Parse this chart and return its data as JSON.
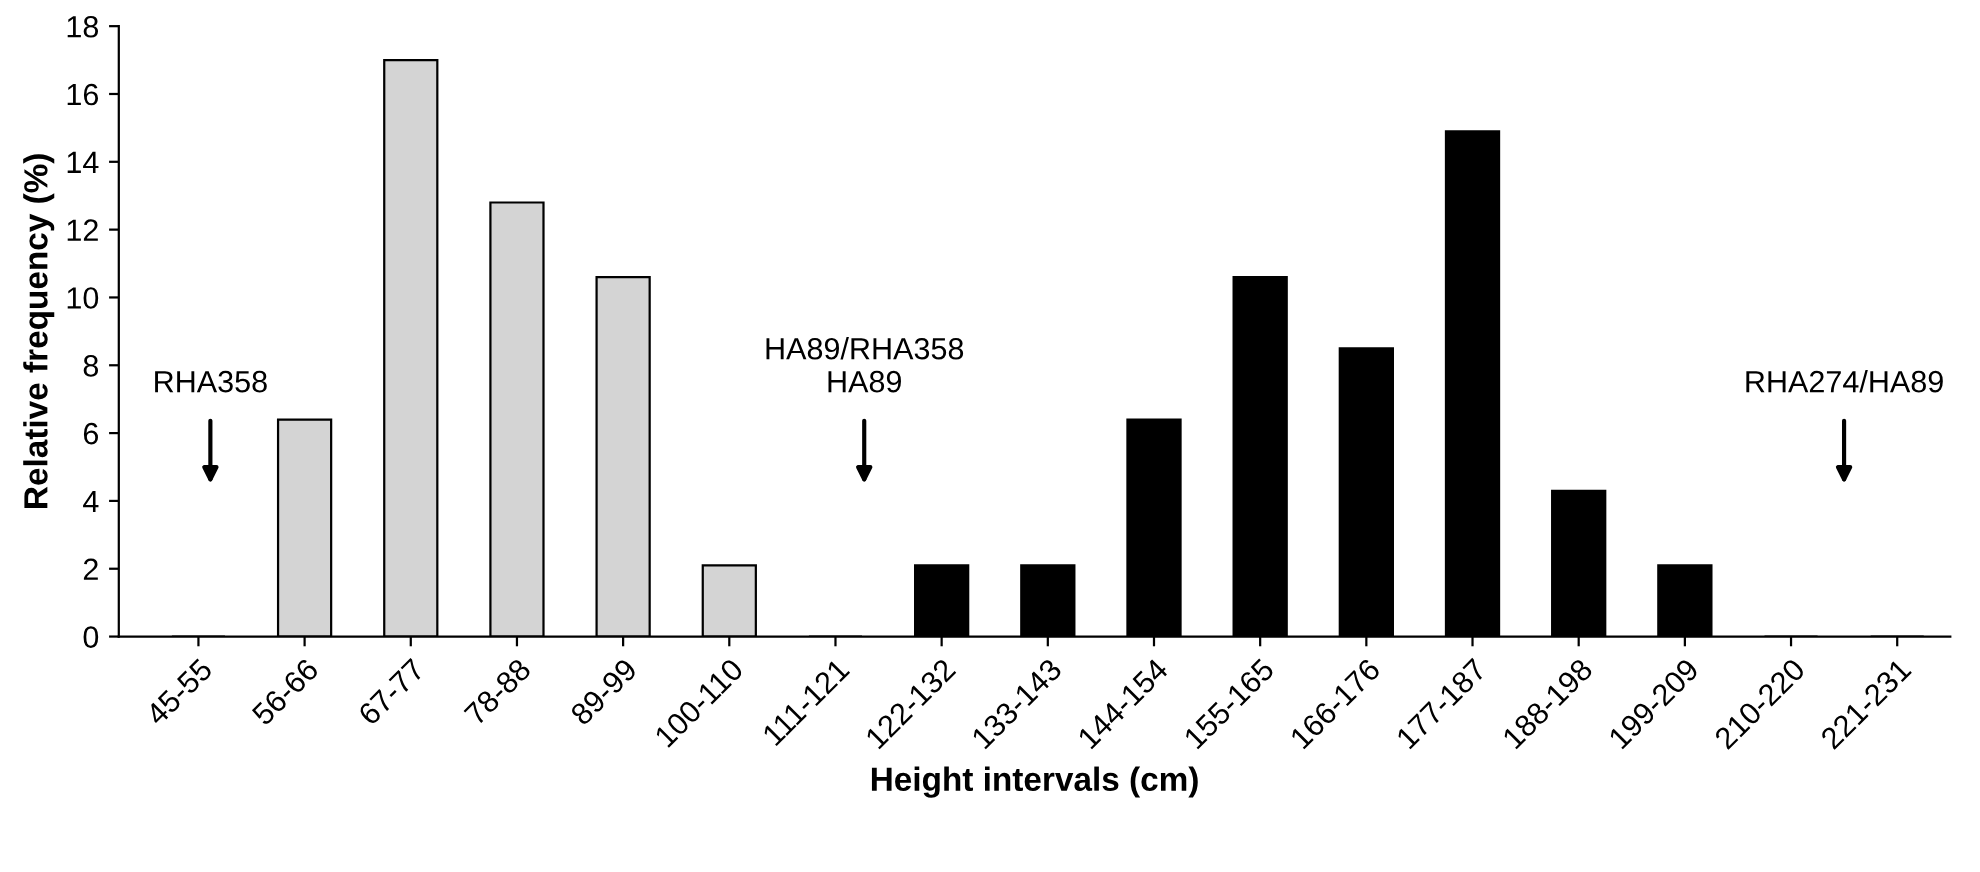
{
  "chart_data": {
    "type": "bar",
    "xlabel": "Height intervals (cm)",
    "ylabel": "Relative frequency (%)",
    "categories": [
      "45-55",
      "56-66",
      "67-77",
      "78-88",
      "89-99",
      "100-110",
      "111-121",
      "122-132",
      "133-143",
      "144-154",
      "155-165",
      "166-176",
      "177-187",
      "188-198",
      "199-209",
      "210-220",
      "221-231"
    ],
    "values": [
      0,
      6.4,
      17.0,
      12.8,
      10.6,
      2.1,
      0,
      2.1,
      2.1,
      6.4,
      10.6,
      8.5,
      14.9,
      4.3,
      2.1,
      0,
      0
    ],
    "colors": [
      "#d4d4d4",
      "#d4d4d4",
      "#d4d4d4",
      "#d4d4d4",
      "#d4d4d4",
      "#d4d4d4",
      "#d4d4d4",
      "#000000",
      "#000000",
      "#000000",
      "#000000",
      "#000000",
      "#000000",
      "#000000",
      "#000000",
      "#000000",
      "#000000"
    ],
    "ylim": [
      0,
      18
    ],
    "yticks": [
      0,
      2,
      4,
      6,
      8,
      10,
      12,
      14,
      16,
      18
    ],
    "grid": false,
    "legend": false,
    "annotations": [
      "RHA358",
      "HA89/RHA358\nHA89",
      "RHA274/HA89"
    ]
  }
}
